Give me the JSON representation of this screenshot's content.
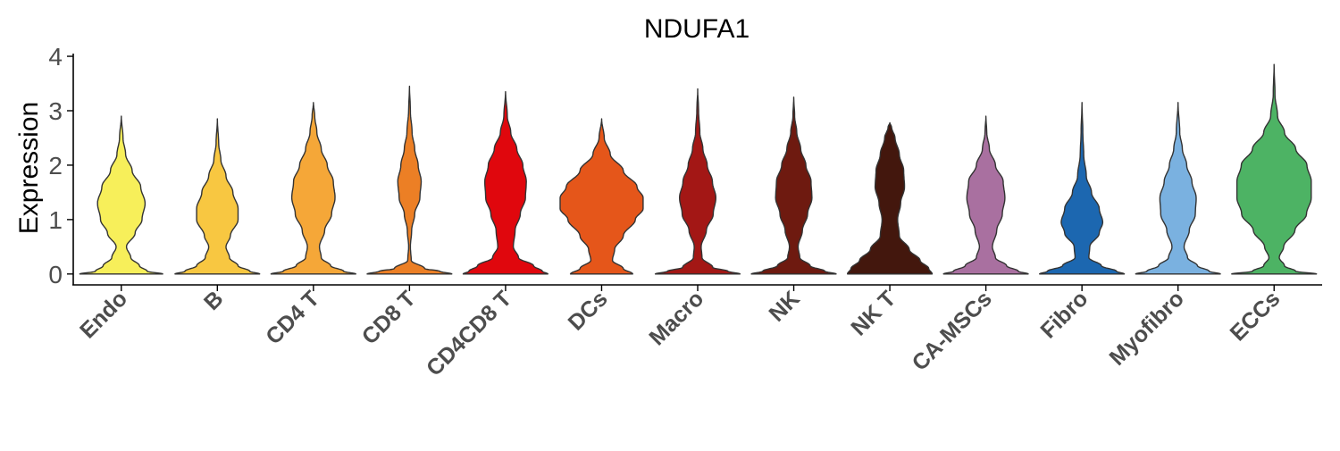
{
  "chart_data": {
    "type": "violin",
    "title": "NDUFA1",
    "xlabel": "",
    "ylabel": "Expression",
    "ylim": [
      -0.2,
      4.05
    ],
    "yticks": [
      0,
      1,
      2,
      3,
      4
    ],
    "grid": false,
    "legend": "none",
    "categories": [
      "Endo",
      "B",
      "CD4 T",
      "CD8 T",
      "CD4CD8 T",
      "DCs",
      "Macro",
      "NK",
      "NK T",
      "CA-MSCs",
      "Fibro",
      "Myofibro",
      "ECCs"
    ],
    "series": [
      {
        "category": "Endo",
        "color": "#F7EF5A",
        "max": 2.9,
        "profile": [
          [
            0,
            0.96
          ],
          [
            0.05,
            0.6
          ],
          [
            0.15,
            0.42
          ],
          [
            0.3,
            0.22
          ],
          [
            0.5,
            0.12
          ],
          [
            0.75,
            0.32
          ],
          [
            1.0,
            0.48
          ],
          [
            1.3,
            0.55
          ],
          [
            1.6,
            0.45
          ],
          [
            1.9,
            0.25
          ],
          [
            2.2,
            0.1
          ],
          [
            2.5,
            0.04
          ],
          [
            2.9,
            0.0
          ]
        ]
      },
      {
        "category": "B",
        "color": "#F8C741",
        "max": 2.85,
        "profile": [
          [
            0,
            0.98
          ],
          [
            0.05,
            0.75
          ],
          [
            0.15,
            0.48
          ],
          [
            0.3,
            0.28
          ],
          [
            0.5,
            0.2
          ],
          [
            0.7,
            0.3
          ],
          [
            1.0,
            0.48
          ],
          [
            1.2,
            0.48
          ],
          [
            1.5,
            0.36
          ],
          [
            1.8,
            0.2
          ],
          [
            2.1,
            0.08
          ],
          [
            2.4,
            0.03
          ],
          [
            2.85,
            0.0
          ]
        ]
      },
      {
        "category": "CD4 T",
        "color": "#F5A738",
        "max": 3.15,
        "profile": [
          [
            0,
            0.98
          ],
          [
            0.05,
            0.7
          ],
          [
            0.15,
            0.4
          ],
          [
            0.3,
            0.18
          ],
          [
            0.5,
            0.14
          ],
          [
            0.8,
            0.26
          ],
          [
            1.1,
            0.42
          ],
          [
            1.4,
            0.5
          ],
          [
            1.7,
            0.46
          ],
          [
            2.0,
            0.32
          ],
          [
            2.3,
            0.18
          ],
          [
            2.6,
            0.08
          ],
          [
            2.9,
            0.03
          ],
          [
            3.15,
            0.0
          ]
        ]
      },
      {
        "category": "CD8 T",
        "color": "#EC7F25",
        "max": 3.45,
        "profile": [
          [
            0,
            0.98
          ],
          [
            0.05,
            0.7
          ],
          [
            0.1,
            0.35
          ],
          [
            0.25,
            0.04
          ],
          [
            0.5,
            0.02
          ],
          [
            0.8,
            0.05
          ],
          [
            1.1,
            0.12
          ],
          [
            1.4,
            0.24
          ],
          [
            1.7,
            0.27
          ],
          [
            2.0,
            0.2
          ],
          [
            2.3,
            0.12
          ],
          [
            2.6,
            0.06
          ],
          [
            3.0,
            0.02
          ],
          [
            3.45,
            0.0
          ]
        ]
      },
      {
        "category": "CD4CD8 T",
        "color": "#E0070D",
        "max": 3.35,
        "profile": [
          [
            0,
            0.98
          ],
          [
            0.05,
            0.85
          ],
          [
            0.15,
            0.65
          ],
          [
            0.3,
            0.3
          ],
          [
            0.5,
            0.18
          ],
          [
            0.8,
            0.22
          ],
          [
            1.1,
            0.34
          ],
          [
            1.4,
            0.46
          ],
          [
            1.7,
            0.48
          ],
          [
            2.0,
            0.4
          ],
          [
            2.3,
            0.26
          ],
          [
            2.6,
            0.12
          ],
          [
            2.9,
            0.04
          ],
          [
            3.35,
            0.0
          ]
        ]
      },
      {
        "category": "DCs",
        "color": "#E5561A",
        "max": 2.85,
        "profile": [
          [
            0,
            0.72
          ],
          [
            0.1,
            0.5
          ],
          [
            0.25,
            0.25
          ],
          [
            0.45,
            0.3
          ],
          [
            0.7,
            0.5
          ],
          [
            1.0,
            0.78
          ],
          [
            1.2,
            0.96
          ],
          [
            1.4,
            0.96
          ],
          [
            1.6,
            0.82
          ],
          [
            1.9,
            0.5
          ],
          [
            2.2,
            0.2
          ],
          [
            2.5,
            0.06
          ],
          [
            2.85,
            0.0
          ]
        ]
      },
      {
        "category": "Macro",
        "color": "#A31715",
        "max": 3.4,
        "profile": [
          [
            0,
            0.98
          ],
          [
            0.05,
            0.7
          ],
          [
            0.12,
            0.35
          ],
          [
            0.3,
            0.1
          ],
          [
            0.5,
            0.08
          ],
          [
            0.8,
            0.2
          ],
          [
            1.1,
            0.36
          ],
          [
            1.4,
            0.42
          ],
          [
            1.7,
            0.34
          ],
          [
            2.0,
            0.22
          ],
          [
            2.3,
            0.12
          ],
          [
            2.6,
            0.05
          ],
          [
            3.0,
            0.02
          ],
          [
            3.4,
            0.0
          ]
        ]
      },
      {
        "category": "NK",
        "color": "#6E1A10",
        "max": 3.25,
        "profile": [
          [
            0,
            0.98
          ],
          [
            0.05,
            0.72
          ],
          [
            0.15,
            0.38
          ],
          [
            0.3,
            0.14
          ],
          [
            0.5,
            0.1
          ],
          [
            0.8,
            0.2
          ],
          [
            1.1,
            0.32
          ],
          [
            1.4,
            0.42
          ],
          [
            1.7,
            0.4
          ],
          [
            2.0,
            0.28
          ],
          [
            2.3,
            0.16
          ],
          [
            2.6,
            0.07
          ],
          [
            2.9,
            0.02
          ],
          [
            3.25,
            0.0
          ]
        ]
      },
      {
        "category": "NK T",
        "color": "#43170D",
        "max": 2.78,
        "profile": [
          [
            0,
            0.98
          ],
          [
            0.1,
            0.9
          ],
          [
            0.25,
            0.7
          ],
          [
            0.45,
            0.45
          ],
          [
            0.7,
            0.22
          ],
          [
            1.0,
            0.18
          ],
          [
            1.3,
            0.25
          ],
          [
            1.6,
            0.34
          ],
          [
            1.9,
            0.32
          ],
          [
            2.2,
            0.22
          ],
          [
            2.5,
            0.12
          ],
          [
            2.7,
            0.04
          ],
          [
            2.78,
            0.0
          ]
        ]
      },
      {
        "category": "CA-MSCs",
        "color": "#A970A0",
        "max": 2.9,
        "profile": [
          [
            0,
            0.98
          ],
          [
            0.05,
            0.75
          ],
          [
            0.15,
            0.48
          ],
          [
            0.3,
            0.22
          ],
          [
            0.5,
            0.15
          ],
          [
            0.8,
            0.25
          ],
          [
            1.1,
            0.38
          ],
          [
            1.4,
            0.44
          ],
          [
            1.7,
            0.4
          ],
          [
            2.0,
            0.22
          ],
          [
            2.3,
            0.08
          ],
          [
            2.6,
            0.02
          ],
          [
            2.9,
            0.0
          ]
        ]
      },
      {
        "category": "Fibro",
        "color": "#1C67B0",
        "max": 3.15,
        "profile": [
          [
            0,
            0.98
          ],
          [
            0.05,
            0.8
          ],
          [
            0.15,
            0.45
          ],
          [
            0.3,
            0.16
          ],
          [
            0.5,
            0.18
          ],
          [
            0.75,
            0.4
          ],
          [
            0.95,
            0.48
          ],
          [
            1.2,
            0.4
          ],
          [
            1.5,
            0.22
          ],
          [
            1.8,
            0.1
          ],
          [
            2.2,
            0.04
          ],
          [
            2.6,
            0.02
          ],
          [
            3.15,
            0.0
          ]
        ]
      },
      {
        "category": "Myofibro",
        "color": "#7AB1E0",
        "max": 3.15,
        "profile": [
          [
            0,
            0.98
          ],
          [
            0.05,
            0.72
          ],
          [
            0.15,
            0.45
          ],
          [
            0.3,
            0.22
          ],
          [
            0.5,
            0.14
          ],
          [
            0.8,
            0.26
          ],
          [
            1.1,
            0.4
          ],
          [
            1.4,
            0.42
          ],
          [
            1.7,
            0.32
          ],
          [
            2.0,
            0.2
          ],
          [
            2.3,
            0.1
          ],
          [
            2.6,
            0.04
          ],
          [
            3.15,
            0.0
          ]
        ]
      },
      {
        "category": "ECCs",
        "color": "#4DB364",
        "max": 3.85,
        "profile": [
          [
            0,
            0.98
          ],
          [
            0.05,
            0.5
          ],
          [
            0.15,
            0.24
          ],
          [
            0.3,
            0.12
          ],
          [
            0.5,
            0.22
          ],
          [
            0.8,
            0.48
          ],
          [
            1.1,
            0.75
          ],
          [
            1.4,
            0.86
          ],
          [
            1.7,
            0.86
          ],
          [
            2.0,
            0.76
          ],
          [
            2.3,
            0.5
          ],
          [
            2.6,
            0.24
          ],
          [
            2.9,
            0.08
          ],
          [
            3.3,
            0.02
          ],
          [
            3.85,
            0.0
          ]
        ]
      }
    ]
  }
}
